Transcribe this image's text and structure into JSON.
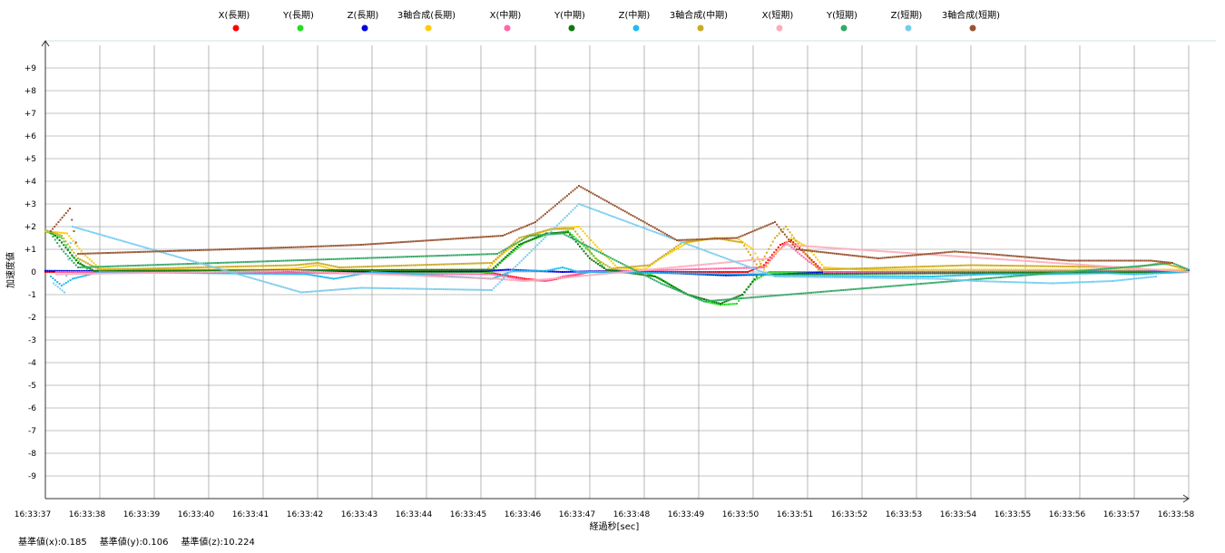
{
  "chart_data": {
    "type": "scatter",
    "title": "",
    "xlabel": "経過秒[sec]",
    "ylabel": "加速度値",
    "ylim": [
      -10,
      10
    ],
    "y_ticks": [
      "+9",
      "+8",
      "+7",
      "+6",
      "+5",
      "+4",
      "+3",
      "+2",
      "+1",
      "0",
      "-1",
      "-2",
      "-3",
      "-4",
      "-5",
      "-6",
      "-7",
      "-8",
      "-9"
    ],
    "x_ticks": [
      "16:33:37",
      "16:33:38",
      "16:33:39",
      "16:33:40",
      "16:33:41",
      "16:33:42",
      "16:33:43",
      "16:33:44",
      "16:33:45",
      "16:33:46",
      "16:33:47",
      "16:33:48",
      "16:33:49",
      "16:33:50",
      "16:33:51",
      "16:33:52",
      "16:33:53",
      "16:33:54",
      "16:33:55",
      "16:33:56",
      "16:33:57",
      "16:33:58"
    ],
    "xlim": [
      0,
      21
    ],
    "grid": true,
    "legend_position": "top",
    "series": [
      {
        "name": "X(長期)",
        "color": "#ff0000",
        "points": [
          [
            0,
            0
          ],
          [
            0.6,
            0
          ],
          [
            2,
            0
          ],
          [
            8,
            0
          ],
          [
            8.2,
            -0.05
          ],
          [
            8.8,
            -0.3
          ],
          [
            9.2,
            -0.4
          ],
          [
            9.6,
            -0.2
          ],
          [
            10,
            0
          ],
          [
            11.5,
            0
          ],
          [
            12.9,
            0
          ],
          [
            13.2,
            0.3
          ],
          [
            13.5,
            1.2
          ],
          [
            13.7,
            1.4
          ],
          [
            14,
            0.7
          ],
          [
            14.3,
            0
          ],
          [
            21,
            0
          ]
        ]
      },
      {
        "name": "Y(長期)",
        "color": "#22dd22",
        "points": [
          [
            0,
            1.8
          ],
          [
            0.3,
            1.5
          ],
          [
            0.5,
            0.7
          ],
          [
            0.8,
            0.05
          ],
          [
            2,
            0
          ],
          [
            8.2,
            0
          ],
          [
            8.4,
            0.5
          ],
          [
            8.8,
            1.3
          ],
          [
            9.2,
            1.65
          ],
          [
            9.6,
            1.8
          ],
          [
            10,
            0.9
          ],
          [
            10.3,
            0.1
          ],
          [
            11,
            0
          ],
          [
            11.3,
            -0.3
          ],
          [
            11.7,
            -0.9
          ],
          [
            12.1,
            -1.3
          ],
          [
            12.4,
            -1.45
          ],
          [
            12.7,
            -1.4
          ],
          [
            13,
            -0.4
          ],
          [
            13.3,
            0
          ],
          [
            21,
            0
          ]
        ]
      },
      {
        "name": "Z(長期)",
        "color": "#0000dd",
        "points": [
          [
            0,
            0.05
          ],
          [
            2,
            0.02
          ],
          [
            8,
            0.03
          ],
          [
            8.5,
            0.1
          ],
          [
            9.5,
            0
          ],
          [
            10.5,
            0.05
          ],
          [
            11.5,
            -0.05
          ],
          [
            12.5,
            -0.15
          ],
          [
            13.5,
            -0.1
          ],
          [
            14.5,
            0
          ],
          [
            21,
            0.02
          ]
        ]
      },
      {
        "name": "3軸合成(長期)",
        "color": "#ffcc00",
        "points": [
          [
            0,
            1.8
          ],
          [
            0.4,
            1.7
          ],
          [
            0.7,
            0.8
          ],
          [
            1,
            0.15
          ],
          [
            2,
            0.1
          ],
          [
            4,
            0.1
          ],
          [
            4.6,
            0.15
          ],
          [
            5,
            0.3
          ],
          [
            5.3,
            0.1
          ],
          [
            6,
            0.08
          ],
          [
            8.1,
            0.1
          ],
          [
            8.4,
            0.8
          ],
          [
            8.8,
            1.5
          ],
          [
            9.3,
            1.9
          ],
          [
            9.8,
            2
          ],
          [
            10.1,
            1.2
          ],
          [
            10.5,
            0.2
          ],
          [
            11,
            0.1
          ],
          [
            11.3,
            0.6
          ],
          [
            11.8,
            1.3
          ],
          [
            12.3,
            1.5
          ],
          [
            12.7,
            1.5
          ],
          [
            13,
            1
          ],
          [
            13.2,
            0.1
          ],
          [
            13.4,
            0.8
          ],
          [
            13.7,
            1.5
          ],
          [
            14,
            1.1
          ],
          [
            14.3,
            0.2
          ],
          [
            15,
            0.1
          ],
          [
            21,
            0.1
          ]
        ]
      },
      {
        "name": "X(中期)",
        "color": "#ff66aa",
        "points": [
          [
            0.2,
            0
          ],
          [
            2,
            0
          ],
          [
            8.2,
            -0.1
          ],
          [
            8.8,
            -0.35
          ],
          [
            9.2,
            -0.4
          ],
          [
            9.5,
            -0.2
          ],
          [
            10,
            0
          ],
          [
            13.2,
            0.2
          ],
          [
            13.6,
            1.3
          ],
          [
            14,
            0.5
          ],
          [
            14.3,
            0
          ],
          [
            21,
            0
          ]
        ]
      },
      {
        "name": "Y(中期)",
        "color": "#117711",
        "points": [
          [
            0.1,
            1.8
          ],
          [
            0.3,
            1.3
          ],
          [
            0.6,
            0.4
          ],
          [
            0.9,
            0.05
          ],
          [
            8.2,
            0.1
          ],
          [
            8.7,
            1.2
          ],
          [
            9.2,
            1.7
          ],
          [
            9.6,
            1.75
          ],
          [
            10,
            0.6
          ],
          [
            10.3,
            0.1
          ],
          [
            11.2,
            -0.2
          ],
          [
            11.8,
            -1.0
          ],
          [
            12.4,
            -1.4
          ],
          [
            12.8,
            -1.0
          ],
          [
            13.1,
            -0.1
          ],
          [
            21,
            0
          ]
        ]
      },
      {
        "name": "Z(中期)",
        "color": "#22bbee",
        "points": [
          [
            0.1,
            -0.2
          ],
          [
            0.3,
            -0.6
          ],
          [
            0.5,
            -0.3
          ],
          [
            1,
            0
          ],
          [
            4.8,
            -0.1
          ],
          [
            5.3,
            -0.3
          ],
          [
            6,
            0
          ],
          [
            8.2,
            -0.3
          ],
          [
            8.6,
            0.05
          ],
          [
            9.2,
            0.05
          ],
          [
            9.5,
            0.2
          ],
          [
            9.8,
            0
          ],
          [
            13.1,
            -0.1
          ],
          [
            13.4,
            -0.15
          ],
          [
            16.3,
            -0.2
          ],
          [
            16.8,
            -0.15
          ],
          [
            17.3,
            -0.1
          ],
          [
            18.3,
            -0.1
          ],
          [
            19.5,
            -0.05
          ],
          [
            20,
            -0.1
          ],
          [
            21,
            0
          ]
        ]
      },
      {
        "name": "3軸合成(中期)",
        "color": "#ccaa22",
        "points": [
          [
            0,
            1.85
          ],
          [
            0.3,
            1.6
          ],
          [
            0.6,
            0.6
          ],
          [
            1,
            0.1
          ],
          [
            4.6,
            0.3
          ],
          [
            5,
            0.4
          ],
          [
            5.4,
            0.2
          ],
          [
            8.2,
            0.4
          ],
          [
            8.7,
            1.5
          ],
          [
            9.3,
            1.9
          ],
          [
            9.7,
            1.9
          ],
          [
            10.1,
            0.6
          ],
          [
            10.4,
            0.15
          ],
          [
            11.1,
            0.3
          ],
          [
            11.7,
            1.3
          ],
          [
            12.3,
            1.5
          ],
          [
            12.8,
            1.3
          ],
          [
            13.1,
            0.2
          ],
          [
            13.4,
            1.5
          ],
          [
            13.6,
            2
          ],
          [
            13.9,
            1
          ],
          [
            14.2,
            0.1
          ],
          [
            16.3,
            0.25
          ],
          [
            17,
            0.3
          ],
          [
            20,
            0.2
          ],
          [
            20.5,
            0.4
          ],
          [
            21,
            0.1
          ]
        ]
      },
      {
        "name": "X(短期)",
        "color": "#ffaabb",
        "points": [
          [
            0.2,
            -0.1
          ],
          [
            4.5,
            0.05
          ],
          [
            8.3,
            -0.3
          ],
          [
            8.8,
            -0.4
          ],
          [
            9.3,
            -0.3
          ],
          [
            13.3,
            0.6
          ],
          [
            13.6,
            1.2
          ],
          [
            21,
            0
          ]
        ]
      },
      {
        "name": "Y(短期)",
        "color": "#33aa66",
        "points": [
          [
            0.1,
            1.7
          ],
          [
            0.3,
            1.0
          ],
          [
            0.6,
            0.2
          ],
          [
            8.3,
            0.8
          ],
          [
            8.9,
            1.6
          ],
          [
            9.5,
            1.7
          ],
          [
            11.3,
            -0.5
          ],
          [
            12.1,
            -1.3
          ],
          [
            12.6,
            -1.2
          ],
          [
            20.3,
            0.3
          ],
          [
            20.7,
            0.4
          ],
          [
            21,
            0.1
          ]
        ]
      },
      {
        "name": "Z(短期)",
        "color": "#77ccee",
        "points": [
          [
            0.15,
            -0.5
          ],
          [
            0.35,
            -0.9
          ],
          [
            0.5,
            2.0
          ],
          [
            4.7,
            -0.9
          ],
          [
            5.8,
            -0.7
          ],
          [
            8.2,
            -0.8
          ],
          [
            9.8,
            3.0
          ],
          [
            13.4,
            -0.2
          ],
          [
            16.4,
            -0.3
          ],
          [
            17.1,
            -0.4
          ],
          [
            18.5,
            -0.5
          ],
          [
            19.6,
            -0.4
          ],
          [
            20.4,
            -0.2
          ]
        ]
      },
      {
        "name": "3軸合成(短期)",
        "color": "#995533",
        "points": [
          [
            0.1,
            1.8
          ],
          [
            0.45,
            2.8
          ],
          [
            0.6,
            0.8
          ],
          [
            4.7,
            1.1
          ],
          [
            5.8,
            1.2
          ],
          [
            8.4,
            1.6
          ],
          [
            9.0,
            2.2
          ],
          [
            9.8,
            3.8
          ],
          [
            11.6,
            1.4
          ],
          [
            12.7,
            1.5
          ],
          [
            13.4,
            2.2
          ],
          [
            13.8,
            1.0
          ],
          [
            15.3,
            0.6
          ],
          [
            16.7,
            0.9
          ],
          [
            17.3,
            0.8
          ],
          [
            18.8,
            0.5
          ],
          [
            20.3,
            0.5
          ],
          [
            20.7,
            0.4
          ]
        ]
      }
    ]
  },
  "footer": {
    "base_x": "基準値(x):0.185",
    "base_y": "基準値(y):0.106",
    "base_z": "基準値(z):10.224"
  }
}
